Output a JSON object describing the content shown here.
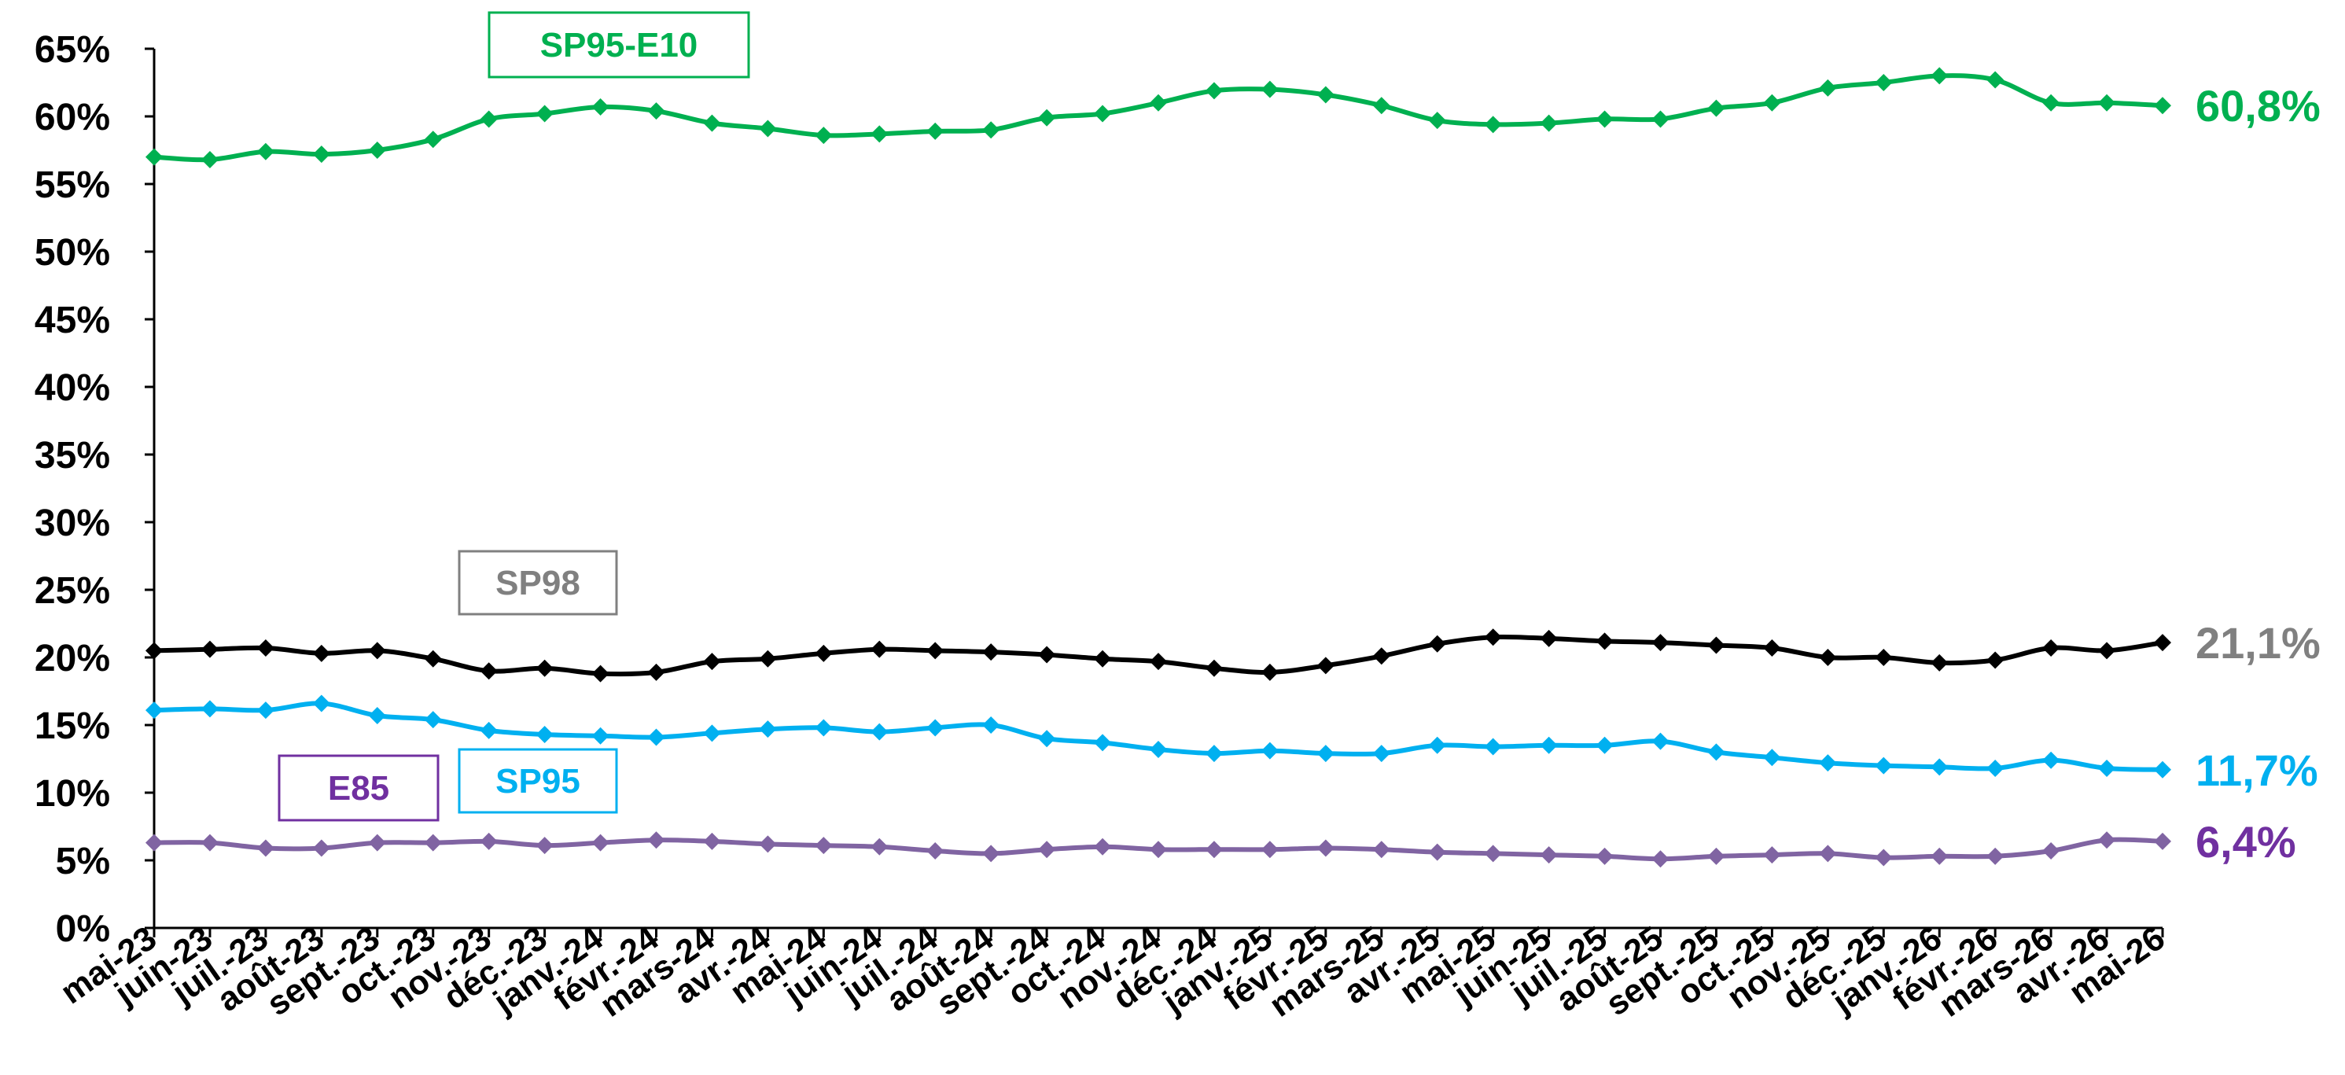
{
  "chart_data": {
    "type": "line",
    "title": "",
    "xlabel": "",
    "ylabel": "",
    "ylim": [
      0,
      65
    ],
    "yticks": [
      "0%",
      "5%",
      "10%",
      "15%",
      "20%",
      "25%",
      "30%",
      "35%",
      "40%",
      "45%",
      "50%",
      "55%",
      "60%",
      "65%"
    ],
    "grid": false,
    "categories": [
      "mai-23",
      "juin-23",
      "juil.-23",
      "août-23",
      "sept.-23",
      "oct.-23",
      "nov.-23",
      "déc.-23",
      "janv.-24",
      "févr.-24",
      "mars-24",
      "avr.-24",
      "mai-24",
      "juin-24",
      "juil.-24",
      "août-24",
      "sept.-24",
      "oct.-24",
      "nov.-24",
      "déc.-24",
      "janv.-25",
      "févr.-25",
      "mars-25",
      "avr.-25",
      "mai-25",
      "juin-25",
      "juil.-25",
      "août-25",
      "sept.-25",
      "oct.-25",
      "nov.-25",
      "déc.-25",
      "janv.-26",
      "févr.-26",
      "mars-26",
      "avr.-26",
      "mai-26"
    ],
    "series": [
      {
        "name": "SP95-E10",
        "color": "#00b050",
        "end_label": "60,8%",
        "values": [
          57.0,
          56.8,
          57.4,
          57.2,
          57.5,
          58.3,
          59.8,
          60.2,
          60.7,
          60.4,
          59.5,
          59.1,
          58.6,
          58.7,
          58.9,
          59.0,
          59.9,
          60.2,
          61.0,
          61.9,
          62.0,
          61.6,
          60.8,
          59.7,
          59.4,
          59.5,
          59.8,
          59.8,
          60.6,
          61.0,
          62.1,
          62.5,
          63.0,
          62.7,
          61.0,
          61.0,
          60.8
        ]
      },
      {
        "name": "SP98",
        "color": "#000000",
        "label_color": "#808080",
        "end_label": "21,1%",
        "values": [
          20.5,
          20.6,
          20.7,
          20.3,
          20.5,
          19.9,
          19.0,
          19.2,
          18.8,
          18.9,
          19.7,
          19.9,
          20.3,
          20.6,
          20.5,
          20.4,
          20.2,
          19.9,
          19.7,
          19.2,
          18.9,
          19.4,
          20.1,
          21.0,
          21.5,
          21.4,
          21.2,
          21.1,
          20.9,
          20.7,
          20.0,
          20.0,
          19.6,
          19.8,
          20.7,
          20.5,
          21.1
        ]
      },
      {
        "name": "SP95",
        "color": "#00b0f0",
        "end_label": "11,7%",
        "values": [
          16.1,
          16.2,
          16.1,
          16.6,
          15.7,
          15.4,
          14.6,
          14.3,
          14.2,
          14.1,
          14.4,
          14.7,
          14.8,
          14.5,
          14.8,
          15.0,
          14.0,
          13.7,
          13.2,
          12.9,
          13.1,
          12.9,
          12.9,
          13.5,
          13.4,
          13.5,
          13.5,
          13.8,
          13.0,
          12.6,
          12.2,
          12.0,
          11.9,
          11.8,
          12.4,
          11.8,
          11.7
        ]
      },
      {
        "name": "E85",
        "color": "#8064a2",
        "label_color": "#7030a0",
        "end_label": "6,4%",
        "values": [
          6.3,
          6.3,
          5.9,
          5.9,
          6.3,
          6.3,
          6.4,
          6.1,
          6.3,
          6.5,
          6.4,
          6.2,
          6.1,
          6.0,
          5.7,
          5.5,
          5.8,
          6.0,
          5.8,
          5.8,
          5.8,
          5.9,
          5.8,
          5.6,
          5.5,
          5.4,
          5.3,
          5.1,
          5.3,
          5.4,
          5.5,
          5.2,
          5.3,
          5.3,
          5.7,
          6.5,
          6.4
        ]
      }
    ]
  }
}
